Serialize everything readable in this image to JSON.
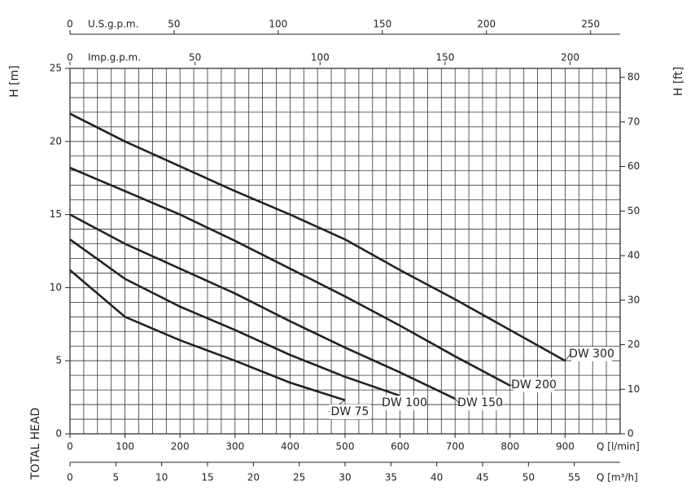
{
  "chart_data": {
    "type": "line",
    "y_label": "H [m]",
    "y2_label": "H [ft]",
    "x_label": "Q [l/min]",
    "side_label": "TOTAL HEAD",
    "xlim": [
      0,
      1000
    ],
    "xticks": [
      0,
      100,
      200,
      300,
      400,
      500,
      600,
      700,
      800,
      900
    ],
    "ylim": [
      0,
      25
    ],
    "yticks": [
      0,
      5,
      10,
      15,
      20,
      25
    ],
    "y2lim": [
      0,
      82.02
    ],
    "y2ticks": [
      0,
      10,
      20,
      30,
      40,
      50,
      60,
      70,
      80
    ],
    "grid": true,
    "x_grid": [
      0,
      25,
      50,
      75,
      100,
      125,
      150,
      175,
      200,
      225,
      250,
      275,
      300,
      325,
      350,
      375,
      400,
      425,
      450,
      475,
      500,
      525,
      550,
      575,
      600,
      625,
      650,
      675,
      700,
      725,
      750,
      775,
      800,
      825,
      850,
      875,
      900,
      925,
      950,
      975,
      1000
    ],
    "y_grid": [
      0,
      1,
      2,
      3,
      4,
      5,
      6,
      7,
      8,
      9,
      10,
      11,
      12,
      13,
      14,
      15,
      16,
      17,
      18,
      19,
      20,
      21,
      22,
      23,
      24,
      25
    ],
    "top_axes": [
      {
        "label": "U.S.g.p.m.",
        "lim": [
          0,
          264.2
        ],
        "ticks": [
          0,
          50,
          100,
          150,
          200,
          250
        ]
      },
      {
        "label": "Imp.g.p.m.",
        "lim": [
          0,
          220
        ],
        "ticks": [
          0,
          50,
          100,
          150,
          200
        ]
      }
    ],
    "bottom_axis": {
      "label": "Q [m³/h]",
      "lim": [
        0,
        60
      ],
      "ticks": [
        0,
        5,
        10,
        15,
        20,
        25,
        30,
        35,
        40,
        45,
        50,
        55
      ]
    },
    "series": [
      {
        "name": "DW 75",
        "color": "#222222",
        "x": [
          0,
          100,
          200,
          300,
          400,
          500
        ],
        "values": [
          11.2,
          8.0,
          6.4,
          5.0,
          3.5,
          2.3
        ]
      },
      {
        "name": "DW 100",
        "color": "#222222",
        "x": [
          0,
          100,
          200,
          300,
          400,
          500,
          600
        ],
        "values": [
          13.3,
          10.6,
          8.7,
          7.1,
          5.4,
          3.9,
          2.6
        ]
      },
      {
        "name": "DW 150",
        "color": "#222222",
        "x": [
          0,
          100,
          200,
          300,
          400,
          500,
          600,
          700
        ],
        "values": [
          15.0,
          13.0,
          11.3,
          9.6,
          7.7,
          5.9,
          4.2,
          2.4
        ]
      },
      {
        "name": "DW 200",
        "color": "#222222",
        "x": [
          0,
          100,
          200,
          300,
          400,
          500,
          600,
          700,
          800
        ],
        "values": [
          18.2,
          16.6,
          15.0,
          13.2,
          11.3,
          9.4,
          7.4,
          5.3,
          3.3
        ]
      },
      {
        "name": "DW 300",
        "color": "#222222",
        "x": [
          0,
          100,
          200,
          300,
          400,
          500,
          600,
          700,
          800,
          900
        ],
        "values": [
          21.9,
          20.0,
          18.3,
          16.6,
          15.0,
          13.3,
          11.2,
          9.2,
          7.1,
          5.0
        ]
      }
    ]
  }
}
